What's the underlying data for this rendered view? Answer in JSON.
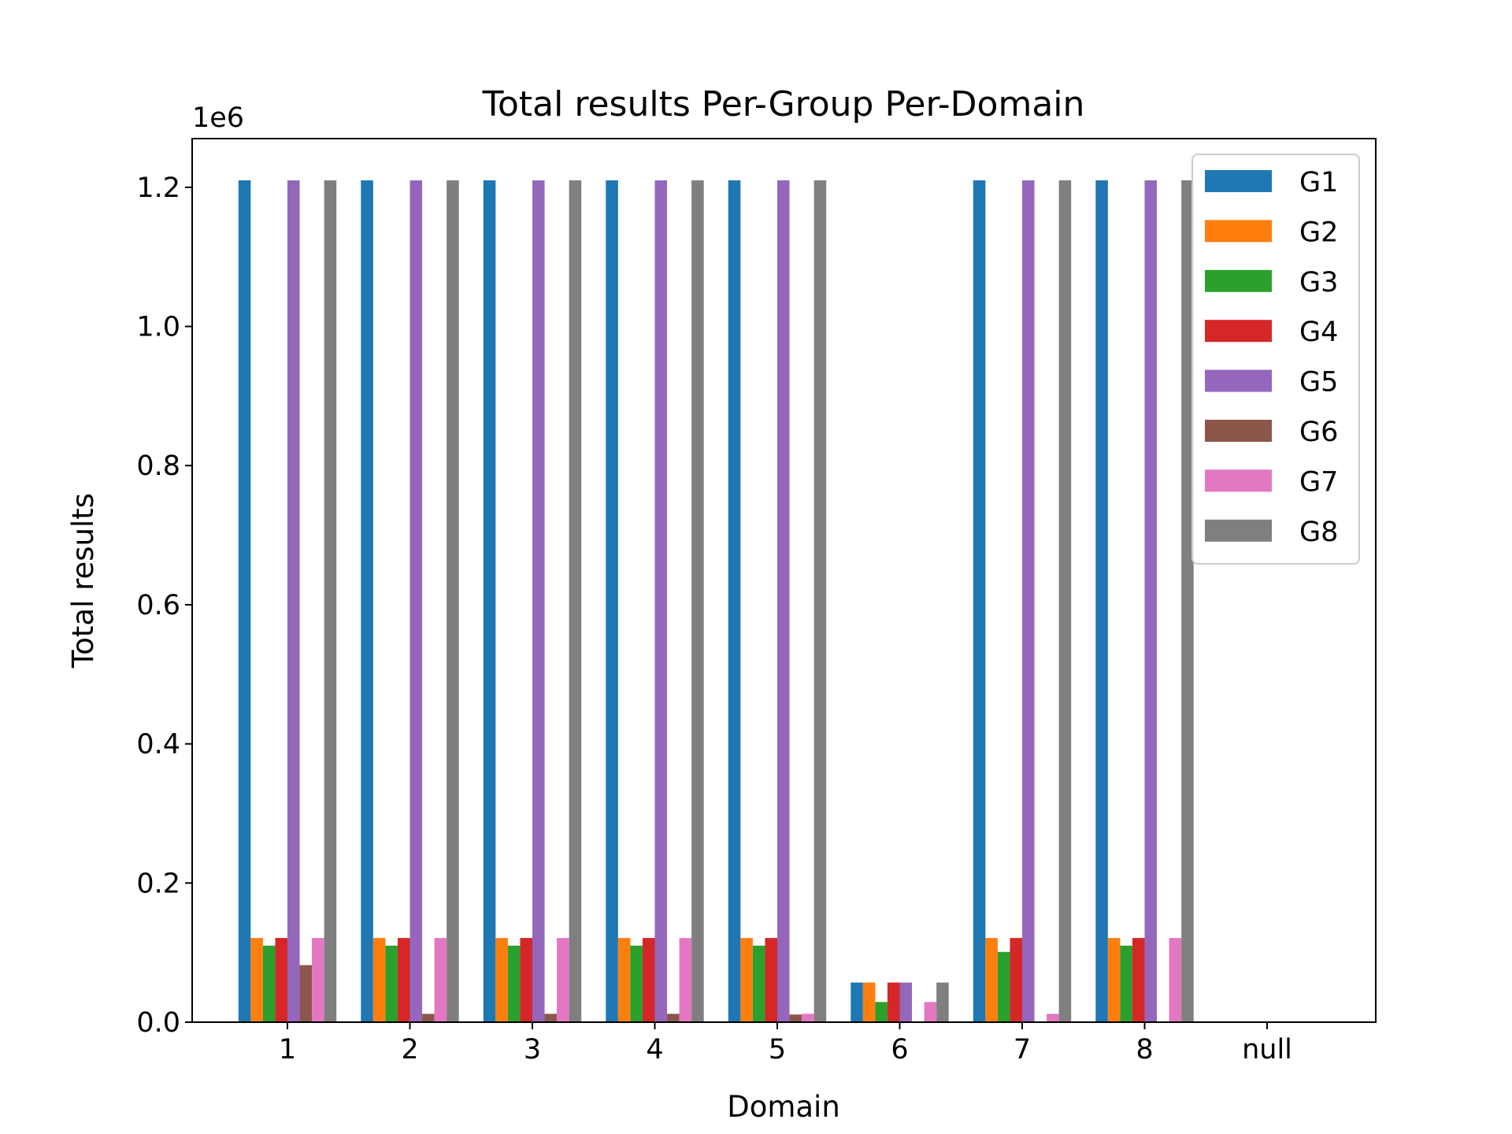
{
  "chart_data": {
    "type": "bar",
    "title": "Total results Per-Group Per-Domain",
    "xlabel": "Domain",
    "ylabel": "Total results",
    "y_offset_label": "1e6",
    "ylim": [
      0,
      1.27
    ],
    "yticks": [
      "0.0",
      "0.2",
      "0.4",
      "0.6",
      "0.8",
      "1.0",
      "1.2"
    ],
    "ytick_values": [
      0,
      0.2,
      0.4,
      0.6,
      0.8,
      1.0,
      1.2
    ],
    "grid": false,
    "legend_position": "top-right",
    "categories": [
      "1",
      "2",
      "3",
      "4",
      "5",
      "6",
      "7",
      "8",
      "null"
    ],
    "series": [
      {
        "name": "G1",
        "color": "#1f77b4",
        "values": [
          1.21,
          1.21,
          1.21,
          1.21,
          1.21,
          0.057,
          1.21,
          1.21,
          0
        ]
      },
      {
        "name": "G2",
        "color": "#ff7f0e",
        "values": [
          0.121,
          0.121,
          0.121,
          0.121,
          0.121,
          0.057,
          0.121,
          0.121,
          0
        ]
      },
      {
        "name": "G3",
        "color": "#2ca02c",
        "values": [
          0.11,
          0.11,
          0.11,
          0.11,
          0.11,
          0.029,
          0.101,
          0.11,
          0
        ]
      },
      {
        "name": "G4",
        "color": "#d62728",
        "values": [
          0.121,
          0.121,
          0.121,
          0.121,
          0.121,
          0.057,
          0.121,
          0.121,
          0
        ]
      },
      {
        "name": "G5",
        "color": "#9467bd",
        "values": [
          1.21,
          1.21,
          1.21,
          1.21,
          1.21,
          0.057,
          1.21,
          1.21,
          0
        ]
      },
      {
        "name": "G6",
        "color": "#8c564b",
        "values": [
          0.082,
          0.012,
          0.012,
          0.012,
          0.011,
          0,
          0,
          0,
          0
        ]
      },
      {
        "name": "G7",
        "color": "#e377c2",
        "values": [
          0.121,
          0.121,
          0.121,
          0.121,
          0.012,
          0.029,
          0.012,
          0.121,
          0
        ]
      },
      {
        "name": "G8",
        "color": "#7f7f7f",
        "values": [
          1.21,
          1.21,
          1.21,
          1.21,
          1.21,
          0.057,
          1.21,
          1.21,
          0
        ]
      }
    ]
  }
}
